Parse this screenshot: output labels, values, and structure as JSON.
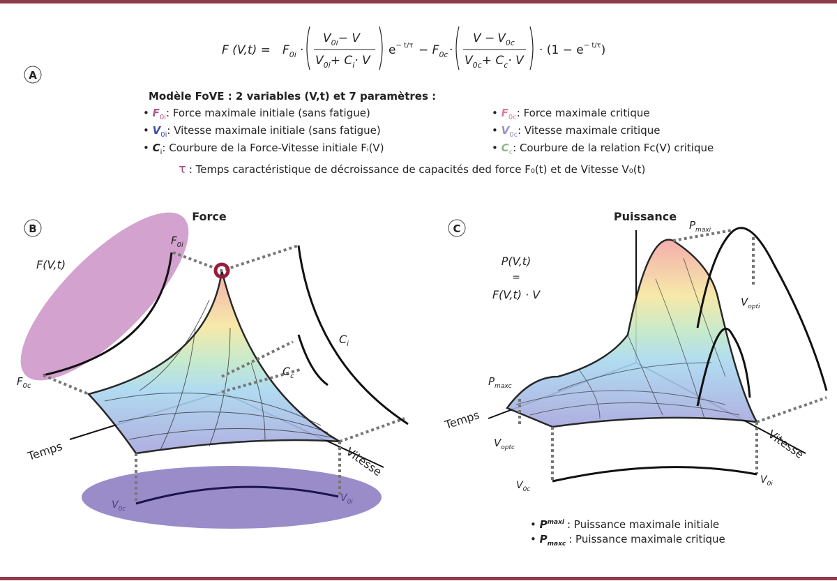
{
  "formula": {
    "lhs": "F (V,t) =",
    "f0i": "F",
    "f0i_sub": "0i",
    "dot": "·",
    "frac1_num_a": "V",
    "frac1_num_a_sub": "0i",
    "frac1_num_b": "− V",
    "frac1_den_a": "V",
    "frac1_den_a_sub": "0i",
    "frac1_den_b": "+ C",
    "frac1_den_b_sub": "i",
    "frac1_den_c": "· V",
    "exp1": "e",
    "exp1_pow": "− t/τ",
    "minus": "− F",
    "f0c_sub": "0c",
    "frac2_num_a": "V −",
    "frac2_num_b": "V",
    "frac2_num_b_sub": "0c",
    "frac2_den_a": "V",
    "frac2_den_a_sub": "0c",
    "frac2_den_b": "+ C",
    "frac2_den_b_sub": "c",
    "frac2_den_c": "· V",
    "tail": "· (1 − e",
    "tail_pow": "− t/τ",
    "tail_close": ")"
  },
  "panels": {
    "a": "A",
    "b": "B",
    "c": "C"
  },
  "legend": {
    "title": "Modèle FoVE : 2 variables (V,t) et 7 paramètres :",
    "items": [
      {
        "sym": "F",
        "sub": "0i",
        "color": "#b0558f",
        "text": ": Force maximale initiale (sans fatigue)"
      },
      {
        "sym": "V",
        "sub": "0i",
        "color": "#3d4aa0",
        "text": ": Vitesse maximale initiale (sans fatigue)"
      },
      {
        "sym": "C",
        "sub": "i",
        "color": "#222222",
        "text": ": Courbure de la Force-Vitesse initiale Fᵢ(V)"
      },
      {
        "sym": "F",
        "sub": "0c",
        "color": "#e07a9a",
        "text": ": Force maximale critique"
      },
      {
        "sym": "V",
        "sub": "0c",
        "color": "#8d93c8",
        "text": ": Vitesse maximale critique"
      },
      {
        "sym": "C",
        "sub": "c",
        "color": "#8fb58a",
        "text": ": Courbure de la relation Fc(V) critique"
      }
    ],
    "tau_sym": "τ",
    "tau_text": ": Temps caractéristique de décroissance de capacités ded force F₀(t) et de Vitesse V₀(t)"
  },
  "panel_b": {
    "title": "Force",
    "fvt": "F(V,t)",
    "f0i": "F",
    "f0i_sub": "0i",
    "f0c": "F",
    "f0c_sub": "0c",
    "ci": "C",
    "ci_sub": "i",
    "cc": "C",
    "cc_sub": "c",
    "temps": "Temps",
    "vitesse": "Vitesse",
    "v0c": "V",
    "v0c_sub": "0c",
    "v0i": "V",
    "v0i_sub": "0i"
  },
  "panel_c": {
    "title": "Puissance",
    "eq1": "P(V,t)",
    "eq2": "=",
    "eq3": "F(V,t) · V",
    "pmaxi": "P",
    "pmaxi_sub": "maxi",
    "pmaxc": "P",
    "pmaxc_sub": "maxc",
    "vopti": "V",
    "vopti_sub": "opti",
    "voptc": "V",
    "voptc_sub": "optc",
    "temps": "Temps",
    "vitesse": "Vitesse",
    "v0c": "V",
    "v0c_sub": "0c",
    "v0i": "V",
    "v0i_sub": "0i",
    "notes": [
      {
        "sym": "P",
        "sub": "maxi",
        "text": ": Puissance maximale initiale"
      },
      {
        "sym": "P",
        "sub": "maxc",
        "text": ": Puissance maximale critique"
      }
    ]
  }
}
